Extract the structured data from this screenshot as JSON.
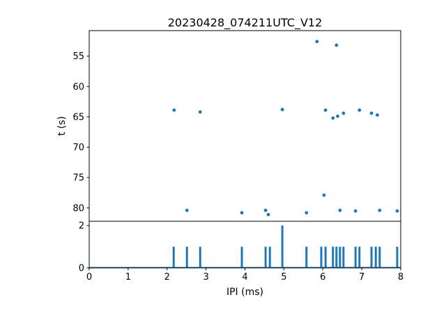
{
  "figure": {
    "background": "#ffffff",
    "accent_color": "#1f77b4"
  },
  "chart_data": [
    {
      "type": "scatter",
      "title": "20230428_074211UTC_V12",
      "xlabel": "",
      "ylabel": "t (s)",
      "xlim": [
        0,
        8
      ],
      "ylim": [
        82.2,
        50.8
      ],
      "y_inverted": true,
      "yticks": [
        55,
        60,
        65,
        70,
        75,
        80
      ],
      "grid": false,
      "legend": "none",
      "marker_color": "#1f77b4",
      "points": [
        [
          5.85,
          52.6
        ],
        [
          6.35,
          53.2
        ],
        [
          2.18,
          63.9
        ],
        [
          2.85,
          64.2
        ],
        [
          4.96,
          63.8
        ],
        [
          6.07,
          63.9
        ],
        [
          6.26,
          65.2
        ],
        [
          6.38,
          64.9
        ],
        [
          6.53,
          64.4
        ],
        [
          6.94,
          63.9
        ],
        [
          7.25,
          64.4
        ],
        [
          7.4,
          64.7
        ],
        [
          6.03,
          77.9
        ],
        [
          2.51,
          80.4
        ],
        [
          3.92,
          80.8
        ],
        [
          4.53,
          80.4
        ],
        [
          4.6,
          81.1
        ],
        [
          5.58,
          80.8
        ],
        [
          6.44,
          80.4
        ],
        [
          6.84,
          80.5
        ],
        [
          7.46,
          80.4
        ],
        [
          7.91,
          80.5
        ]
      ]
    },
    {
      "type": "bar",
      "title": "",
      "xlabel": "IPI (ms)",
      "ylabel": "",
      "xlim": [
        0,
        8
      ],
      "ylim": [
        0,
        2.2
      ],
      "yticks": [
        0,
        2
      ],
      "xticks": [
        0,
        1,
        2,
        3,
        4,
        5,
        6,
        7,
        8
      ],
      "grid": false,
      "legend": "none",
      "bar_color": "#1f77b4",
      "bars": [
        {
          "x": 2.17,
          "h": 1
        },
        {
          "x": 2.51,
          "h": 1
        },
        {
          "x": 2.85,
          "h": 1
        },
        {
          "x": 3.92,
          "h": 1
        },
        {
          "x": 4.53,
          "h": 1
        },
        {
          "x": 4.64,
          "h": 1
        },
        {
          "x": 4.96,
          "h": 2
        },
        {
          "x": 5.58,
          "h": 1
        },
        {
          "x": 5.96,
          "h": 1
        },
        {
          "x": 6.07,
          "h": 1
        },
        {
          "x": 6.26,
          "h": 1
        },
        {
          "x": 6.35,
          "h": 1
        },
        {
          "x": 6.44,
          "h": 1
        },
        {
          "x": 6.53,
          "h": 1
        },
        {
          "x": 6.84,
          "h": 1
        },
        {
          "x": 6.94,
          "h": 1
        },
        {
          "x": 7.25,
          "h": 1
        },
        {
          "x": 7.36,
          "h": 1
        },
        {
          "x": 7.46,
          "h": 1
        },
        {
          "x": 7.91,
          "h": 1
        }
      ]
    }
  ]
}
